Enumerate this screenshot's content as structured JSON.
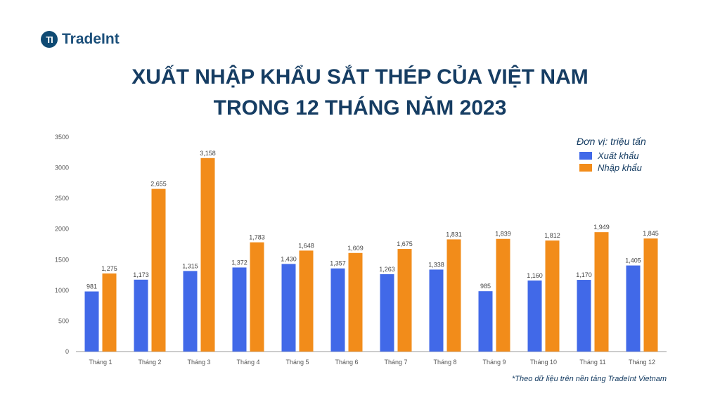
{
  "logo": {
    "text": "TradeInt",
    "icon": "tradeint-logo-icon"
  },
  "title": {
    "line1": "XUẤT NHẬP KHẨU SẮT THÉP CỦA VIỆT NAM",
    "line2": "TRONG 12 THÁNG NĂM 2023"
  },
  "legend": {
    "unit": "Đơn vị: triệu tấn",
    "export_label": "Xuất khẩu",
    "import_label": "Nhập khẩu"
  },
  "footnote": "*Theo dữ liệu trên nền tảng TradeInt Vietnam",
  "colors": {
    "export": "#4169e8",
    "import": "#f28c1a",
    "title": "#163d63"
  },
  "chart_data": {
    "type": "bar",
    "categories": [
      "Tháng 1",
      "Tháng 2",
      "Tháng 3",
      "Tháng 4",
      "Tháng 5",
      "Tháng 6",
      "Tháng 7",
      "Tháng 8",
      "Tháng 9",
      "Tháng 10",
      "Tháng 11",
      "Tháng 12"
    ],
    "series": [
      {
        "name": "Xuất khẩu",
        "values": [
          981,
          1173,
          1315,
          1372,
          1430,
          1357,
          1263,
          1338,
          985,
          1160,
          1170,
          1405
        ],
        "labels": [
          "981",
          "1,173",
          "1,315",
          "1,372",
          "1,430",
          "1,357",
          "1,263",
          "1,338",
          "985",
          "1,160",
          "1,170",
          "1,405"
        ]
      },
      {
        "name": "Nhập khẩu",
        "values": [
          1275,
          2655,
          3158,
          1783,
          1648,
          1609,
          1675,
          1831,
          1839,
          1812,
          1949,
          1845
        ],
        "labels": [
          "1,275",
          "2,655",
          "3,158",
          "1,783",
          "1,648",
          "1,609",
          "1,675",
          "1,831",
          "1,839",
          "1,812",
          "1,949",
          "1,845"
        ]
      }
    ],
    "ylim": [
      0,
      3500
    ],
    "yticks": [
      0,
      500,
      1000,
      1500,
      2000,
      2500,
      3000,
      3500
    ],
    "xlabel": "",
    "ylabel": "",
    "grid": false,
    "legend_position": "top-right"
  }
}
